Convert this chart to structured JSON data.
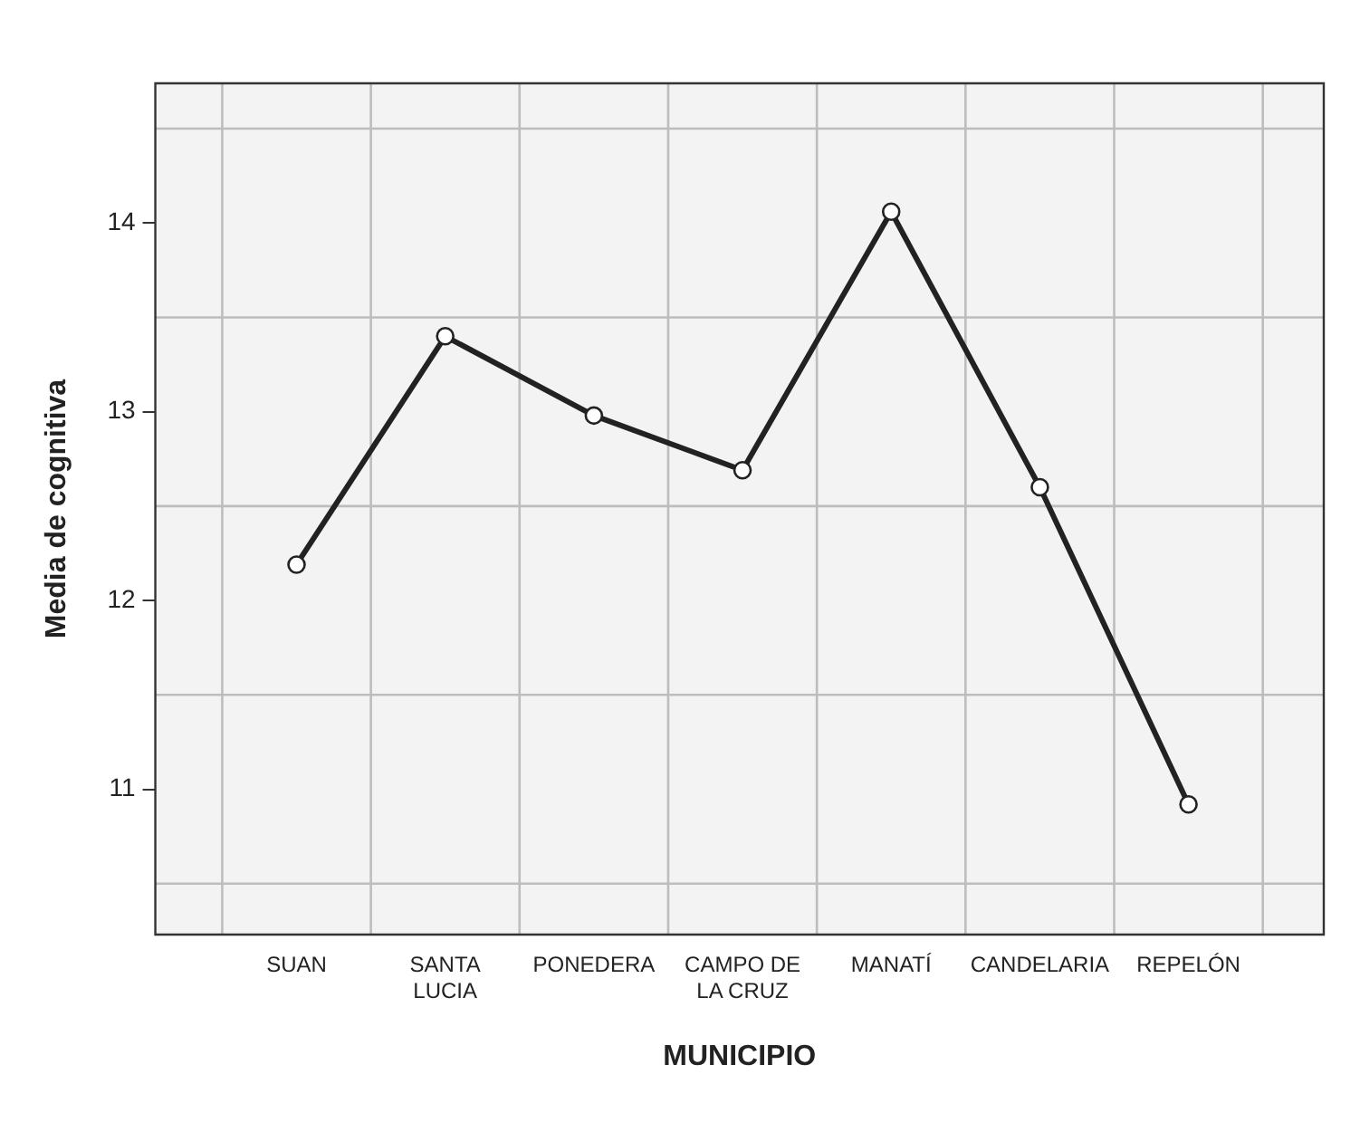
{
  "chart_data": {
    "type": "line",
    "xlabel": "MUNICIPIO",
    "ylabel": "Media de cognitiva",
    "categories": [
      "SUAN",
      "SANTA LUCIA",
      "PONEDERA",
      "CAMPO DE LA CRUZ",
      "MANATÍ",
      "CANDELARIA",
      "REPELÓN"
    ],
    "series": [
      {
        "color": "#222222",
        "values": [
          12.19,
          13.4,
          12.98,
          12.69,
          14.06,
          12.6,
          10.92
        ]
      }
    ],
    "ylim": [
      10.23,
      14.74
    ],
    "yticks": [
      11,
      12,
      13,
      14
    ],
    "grid": true,
    "legend": false,
    "marker": "circle",
    "line_style": "solid"
  }
}
